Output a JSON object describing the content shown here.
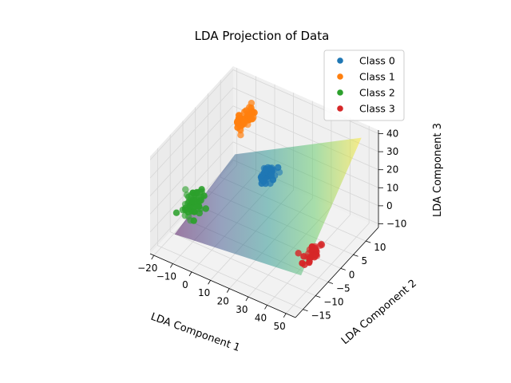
{
  "chart_data": {
    "type": "scatter",
    "projection": "3d",
    "title": "LDA Projection of Data",
    "xlabel": "LDA Component 1",
    "ylabel": "LDA Component 2",
    "zlabel": "LDA Component 3",
    "xlim": [
      -22,
      55
    ],
    "ylim": [
      -18,
      15
    ],
    "zlim": [
      -12,
      42
    ],
    "xticks": [
      -20,
      -10,
      0,
      10,
      20,
      30,
      40,
      50
    ],
    "yticks": [
      -15,
      -10,
      -5,
      0,
      5,
      10
    ],
    "zticks": [
      -10,
      0,
      10,
      20,
      30,
      40
    ],
    "legend_position": "top-right",
    "grid": true,
    "surface": {
      "description": "fitted plane",
      "colormap": "viridis",
      "alpha": 0.5,
      "corners": [
        {
          "x": -17,
          "y": -12,
          "z": -8
        },
        {
          "x": -17,
          "y": 12,
          "z": 0
        },
        {
          "x": 50,
          "y": -12,
          "z": 0
        },
        {
          "x": 50,
          "y": 12,
          "z": 40
        }
      ]
    },
    "series": [
      {
        "name": "Class 0",
        "color": "#1f77b4",
        "center": {
          "x": 8,
          "y": 7,
          "z": 8
        },
        "spread": 1.5,
        "count": 40
      },
      {
        "name": "Class 1",
        "color": "#ff7f0e",
        "center": {
          "x": -12,
          "y": 12,
          "z": 22
        },
        "spread": 1.5,
        "count": 45
      },
      {
        "name": "Class 2",
        "color": "#2ca02c",
        "center": {
          "x": -15,
          "y": -6,
          "z": 1
        },
        "spread": 2.2,
        "count": 60
      },
      {
        "name": "Class 3",
        "color": "#d62728",
        "center": {
          "x": 45,
          "y": -4,
          "z": -3
        },
        "spread": 1.3,
        "count": 35
      }
    ]
  }
}
